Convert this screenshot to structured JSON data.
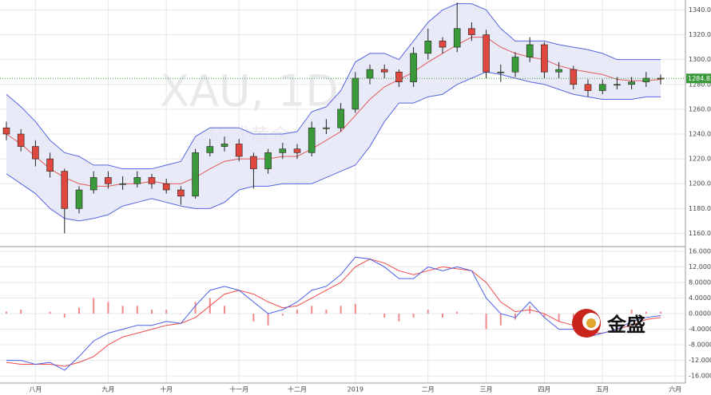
{
  "chart_data": [
    {
      "type": "candlestick",
      "watermark": "XAU, 1D",
      "watermark_sub": "环球黄金",
      "categories": [
        null,
        null,
        "八月",
        null,
        null,
        null,
        null,
        "九月",
        null,
        null,
        null,
        "十月",
        null,
        null,
        null,
        null,
        "十一月",
        null,
        null,
        null,
        "十二月",
        null,
        null,
        null,
        "2019",
        null,
        null,
        null,
        null,
        "二月",
        null,
        null,
        null,
        "三月",
        null,
        null,
        null,
        "四月",
        null,
        null,
        null,
        "五月",
        null,
        null,
        null,
        null,
        "六月"
      ],
      "open": [
        1245,
        1240,
        1230,
        1220,
        1210,
        1180,
        1195,
        1205,
        1200,
        1200,
        1205,
        1200,
        1195,
        1190,
        1225,
        1230,
        1232,
        1222,
        1212,
        1225,
        1228,
        1225,
        1245,
        1245,
        1260,
        1285,
        1292,
        1290,
        1282,
        1305,
        1315,
        1310,
        1325,
        1320,
        1290,
        1290,
        1302,
        1312,
        1290,
        1292,
        1280,
        1275,
        1280,
        1280,
        1282,
        1285,
        null
      ],
      "high": [
        1250,
        1244,
        1235,
        1225,
        1212,
        1198,
        1210,
        1210,
        1206,
        1210,
        1208,
        1204,
        1198,
        1228,
        1236,
        1238,
        1236,
        1225,
        1228,
        1233,
        1232,
        1250,
        1252,
        1265,
        1290,
        1296,
        1296,
        1292,
        1310,
        1325,
        1318,
        1346,
        1330,
        1324,
        1296,
        1306,
        1318,
        1314,
        1298,
        1295,
        1284,
        1284,
        1286,
        1286,
        1290,
        1288,
        null
      ],
      "low": [
        1235,
        1226,
        1214,
        1205,
        1160,
        1176,
        1192,
        1196,
        1195,
        1197,
        1196,
        1192,
        1183,
        1188,
        1222,
        1226,
        1218,
        1196,
        1208,
        1220,
        1220,
        1222,
        1240,
        1242,
        1257,
        1280,
        1285,
        1278,
        1278,
        1300,
        1305,
        1306,
        1315,
        1285,
        1282,
        1286,
        1298,
        1285,
        1285,
        1276,
        1270,
        1272,
        1276,
        1276,
        1278,
        1280,
        null
      ],
      "close": [
        1240,
        1230,
        1220,
        1210,
        1180,
        1195,
        1205,
        1200,
        1200,
        1205,
        1200,
        1195,
        1190,
        1225,
        1230,
        1232,
        1222,
        1212,
        1225,
        1228,
        1225,
        1245,
        1245,
        1260,
        1285,
        1292,
        1290,
        1282,
        1305,
        1315,
        1310,
        1325,
        1320,
        1290,
        1290,
        1302,
        1312,
        1290,
        1292,
        1280,
        1275,
        1280,
        1280,
        1282,
        1285,
        1284.83,
        null
      ],
      "upper": [
        1272,
        1262,
        1250,
        1235,
        1225,
        1222,
        1215,
        1215,
        1212,
        1212,
        1212,
        1215,
        1218,
        1238,
        1245,
        1245,
        1245,
        1240,
        1240,
        1240,
        1242,
        1258,
        1262,
        1275,
        1298,
        1305,
        1305,
        1300,
        1315,
        1330,
        1340,
        1345,
        1345,
        1340,
        1325,
        1315,
        1315,
        1315,
        1312,
        1310,
        1308,
        1305,
        1300,
        1300,
        1300,
        1300,
        null
      ],
      "middle": [
        1240,
        1232,
        1222,
        1212,
        1205,
        1200,
        1198,
        1198,
        1200,
        1200,
        1202,
        1200,
        1200,
        1205,
        1212,
        1218,
        1220,
        1220,
        1220,
        1222,
        1222,
        1228,
        1235,
        1242,
        1255,
        1268,
        1278,
        1284,
        1290,
        1298,
        1305,
        1312,
        1318,
        1318,
        1310,
        1305,
        1302,
        1300,
        1295,
        1292,
        1290,
        1288,
        1284,
        1283,
        1283,
        1284,
        null
      ],
      "lower": [
        1208,
        1200,
        1192,
        1180,
        1172,
        1170,
        1172,
        1175,
        1182,
        1185,
        1188,
        1185,
        1182,
        1180,
        1180,
        1185,
        1195,
        1198,
        1198,
        1200,
        1200,
        1200,
        1205,
        1210,
        1215,
        1230,
        1250,
        1265,
        1265,
        1270,
        1272,
        1280,
        1285,
        1290,
        1288,
        1285,
        1282,
        1280,
        1276,
        1272,
        1270,
        1268,
        1268,
        1268,
        1270,
        1270,
        null
      ],
      "up_color": "#3a9a3a",
      "down_color": "#e0473f",
      "band_color": "#5566e0",
      "middle_color": "#e05a5a",
      "band_fill": "#e4e5f6",
      "ylim": [
        1150,
        1348
      ],
      "yticks": [
        {
          "value": 1160,
          "label": "1160.00"
        },
        {
          "value": 1180,
          "label": "1180.00"
        },
        {
          "value": 1200,
          "label": "1200.00"
        },
        {
          "value": 1220,
          "label": "1220.00"
        },
        {
          "value": 1240,
          "label": "1240.00"
        },
        {
          "value": 1260,
          "label": "1260.00"
        },
        {
          "value": 1280,
          "label": "1280.00"
        },
        {
          "value": 1300,
          "label": "1300.00"
        },
        {
          "value": 1320,
          "label": "1320.00"
        },
        {
          "value": 1340,
          "label": "1340.00"
        }
      ],
      "grid": true
    },
    {
      "type": "macd",
      "logo": "金盛",
      "histogram": [
        0.5,
        1,
        0,
        0.5,
        -1,
        1.5,
        4,
        3,
        2,
        2,
        1,
        1,
        0,
        3,
        4,
        2,
        0,
        -2,
        -3,
        -0.5,
        1,
        2,
        1,
        2,
        2.5,
        0,
        -1,
        -2,
        -1,
        1,
        -1,
        0.5,
        0,
        -4,
        -3,
        -1.5,
        2,
        -1,
        -2,
        -1,
        -1,
        0,
        0,
        1,
        0.5,
        0.5,
        null
      ],
      "macd": [
        -12,
        -12,
        -13,
        -12.5,
        -14.5,
        -11,
        -7,
        -5,
        -4,
        -3,
        -3,
        -2,
        -2.5,
        2,
        6,
        7,
        6,
        3,
        0,
        1,
        3,
        6,
        7,
        10,
        14.5,
        14,
        12,
        9,
        9,
        12,
        11,
        12,
        11,
        4,
        0,
        -1,
        3,
        -1,
        -4,
        -4,
        -6,
        -5,
        -4,
        -2,
        -1,
        -0.5,
        null
      ],
      "signal": [
        -12.5,
        -13,
        -13,
        -13,
        -13.5,
        -12.5,
        -11,
        -8,
        -6,
        -5,
        -4,
        -3,
        -2.5,
        -1,
        2,
        5,
        6,
        5,
        3,
        1.5,
        2,
        4,
        6,
        8,
        12,
        14,
        13,
        11,
        10,
        11,
        12,
        11.5,
        11,
        8,
        3,
        0.5,
        1,
        0,
        -2,
        -3,
        -5,
        -5,
        -4,
        -3,
        -1.5,
        -1,
        null
      ],
      "macd_color": "#4a5de8",
      "signal_color": "#f04a4a",
      "hist_color": "#f08a8a",
      "ylim": [
        -17.8,
        17
      ],
      "yticks": [
        {
          "value": -16,
          "label": "-16.0000"
        },
        {
          "value": -12,
          "label": "-12.0000"
        },
        {
          "value": -8,
          "label": "-8.0000"
        },
        {
          "value": -4,
          "label": "-4.0000"
        },
        {
          "value": 0,
          "label": "0.0000"
        },
        {
          "value": 4,
          "label": "4.0000"
        },
        {
          "value": 8,
          "label": "8.0000"
        },
        {
          "value": 12,
          "label": "12.0000"
        },
        {
          "value": 16,
          "label": "16.0000"
        }
      ],
      "grid": true
    }
  ]
}
